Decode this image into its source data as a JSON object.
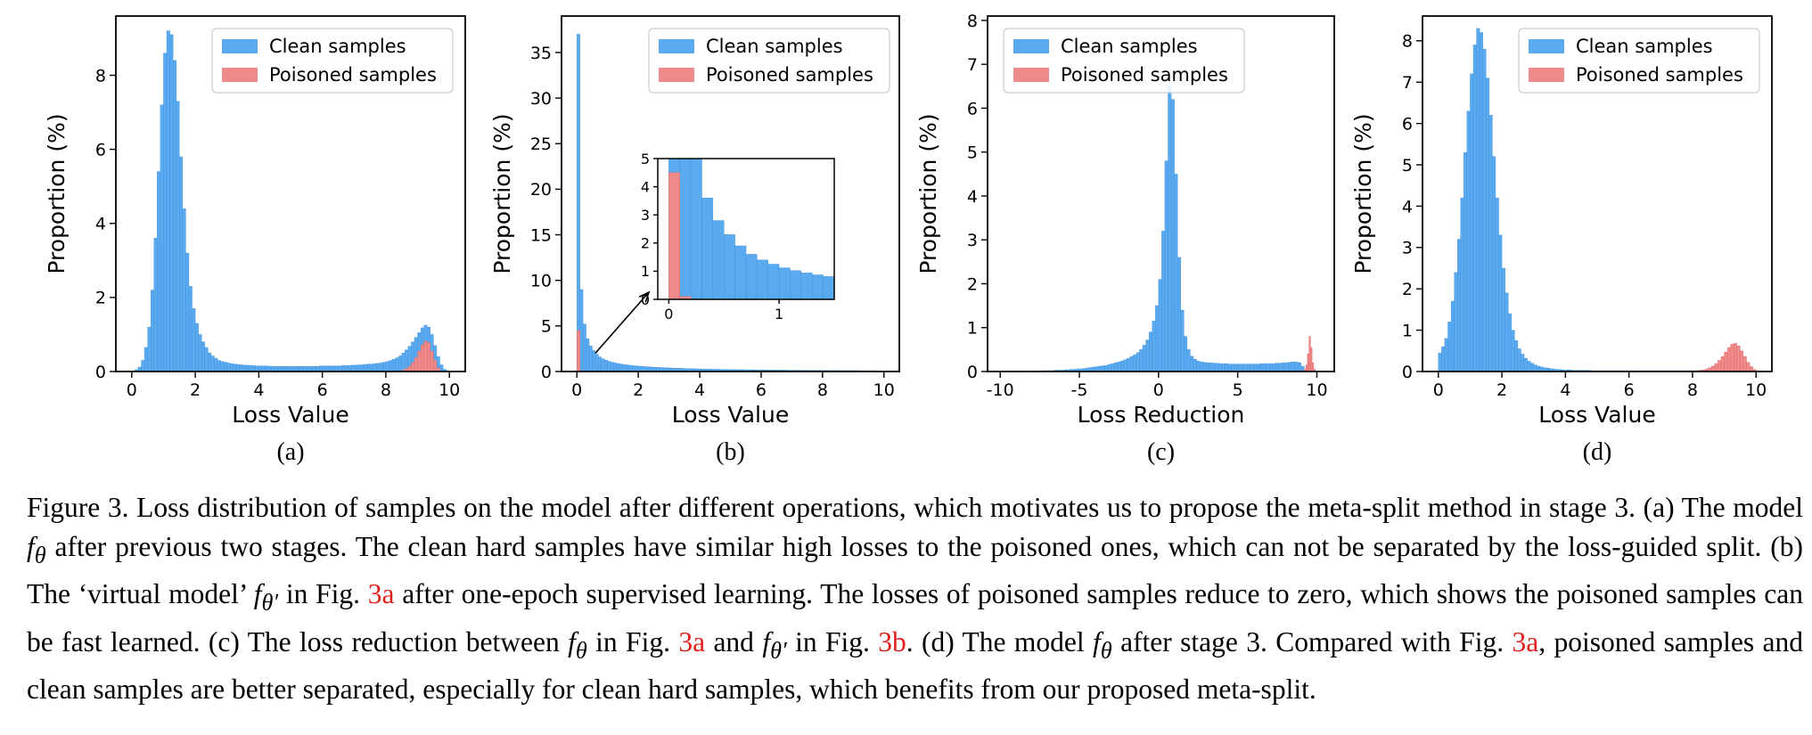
{
  "legend": {
    "clean": "Clean samples",
    "poisoned": "Poisoned samples"
  },
  "colors": {
    "clean": "#5aaaf0",
    "clean_edge": "#3d8fdb",
    "poisoned": "#ef8a8a",
    "poisoned_edge": "#e06666"
  },
  "panels": [
    {
      "id": "a",
      "sublabel": "(a)",
      "xlabel": "Loss Value",
      "ylabel": "Proportion (%)",
      "xlim": [
        -0.5,
        10.5
      ],
      "ylim": [
        0,
        9.6
      ],
      "xticks": [
        0,
        2,
        4,
        6,
        8,
        10
      ],
      "xtick_labels": [
        "0",
        "2",
        "4",
        "6",
        "8",
        "10"
      ],
      "yticks": [
        0,
        2,
        4,
        6,
        8
      ],
      "ytick_labels": [
        "0",
        "2",
        "4",
        "6",
        "8"
      ],
      "clean": {
        "start": 0,
        "width": 0.1,
        "values": [
          0.02,
          0.05,
          0.12,
          0.3,
          0.65,
          1.2,
          2.2,
          3.6,
          5.4,
          7.2,
          8.6,
          9.2,
          9.1,
          8.4,
          7.3,
          5.8,
          4.4,
          3.2,
          2.3,
          1.7,
          1.3,
          1.0,
          0.8,
          0.65,
          0.5,
          0.42,
          0.36,
          0.3,
          0.27,
          0.25,
          0.23,
          0.21,
          0.2,
          0.19,
          0.18,
          0.17,
          0.17,
          0.16,
          0.16,
          0.15,
          0.15,
          0.15,
          0.15,
          0.14,
          0.14,
          0.14,
          0.14,
          0.14,
          0.14,
          0.14,
          0.14,
          0.14,
          0.14,
          0.14,
          0.14,
          0.14,
          0.14,
          0.14,
          0.14,
          0.15,
          0.15,
          0.15,
          0.15,
          0.15,
          0.15,
          0.15,
          0.16,
          0.16,
          0.16,
          0.17,
          0.17,
          0.18,
          0.18,
          0.19,
          0.2,
          0.2,
          0.21,
          0.22,
          0.23,
          0.25,
          0.27,
          0.3,
          0.33,
          0.37,
          0.42,
          0.5,
          0.58,
          0.68,
          0.8,
          0.92,
          1.05,
          1.18,
          1.25,
          1.2,
          1.0,
          0.7,
          0.4,
          0.18,
          0.06,
          0.02
        ]
      },
      "poisoned": {
        "start": 8.4,
        "width": 0.1,
        "values": [
          0.02,
          0.04,
          0.08,
          0.14,
          0.24,
          0.38,
          0.55,
          0.72,
          0.82,
          0.78,
          0.55,
          0.3,
          0.1
        ]
      },
      "inset": null
    },
    {
      "id": "b",
      "sublabel": "(b)",
      "xlabel": "Loss Value",
      "ylabel": "Proportion (%)",
      "xlim": [
        -0.5,
        10.5
      ],
      "ylim": [
        0,
        39
      ],
      "xticks": [
        0,
        2,
        4,
        6,
        8,
        10
      ],
      "xtick_labels": [
        "0",
        "2",
        "4",
        "6",
        "8",
        "10"
      ],
      "yticks": [
        0,
        5,
        10,
        15,
        20,
        25,
        30,
        35
      ],
      "ytick_labels": [
        "0",
        "5",
        "10",
        "15",
        "20",
        "25",
        "30",
        "35"
      ],
      "clean": {
        "start": 0,
        "width": 0.1,
        "values": [
          37.0,
          9.0,
          5.2,
          3.6,
          2.8,
          2.3,
          1.9,
          1.6,
          1.4,
          1.25,
          1.12,
          1.02,
          0.94,
          0.87,
          0.81,
          0.76,
          0.72,
          0.68,
          0.64,
          0.61,
          0.58,
          0.56,
          0.53,
          0.51,
          0.49,
          0.47,
          0.45,
          0.43,
          0.42,
          0.4,
          0.39,
          0.37,
          0.36,
          0.35,
          0.34,
          0.33,
          0.32,
          0.31,
          0.3,
          0.29,
          0.28,
          0.27,
          0.27,
          0.26,
          0.25,
          0.25,
          0.24,
          0.23,
          0.23,
          0.22,
          0.22,
          0.21,
          0.21,
          0.2,
          0.2,
          0.19,
          0.19,
          0.19,
          0.18,
          0.18,
          0.17,
          0.17,
          0.17,
          0.16,
          0.16,
          0.16,
          0.15,
          0.15,
          0.15,
          0.14,
          0.14,
          0.14,
          0.14,
          0.13,
          0.13,
          0.13,
          0.13,
          0.12,
          0.12,
          0.12,
          0.12,
          0.11,
          0.11,
          0.11,
          0.11,
          0.11,
          0.1,
          0.1,
          0.1,
          0.1,
          0.1,
          0.1,
          0.09,
          0.09,
          0.09,
          0.09,
          0.09,
          0.09
        ]
      },
      "poisoned": {
        "start": 0,
        "width": 0.1,
        "values": [
          4.5,
          0.1
        ]
      },
      "inset": {
        "xlim": [
          -0.1,
          1.5
        ],
        "ylim": [
          0,
          5
        ],
        "xticks": [
          0,
          1
        ],
        "xtick_labels": [
          "0",
          "1"
        ],
        "yticks": [
          0,
          1,
          2,
          3,
          4,
          5
        ],
        "ytick_labels": [
          "0",
          "1",
          "2",
          "3",
          "4",
          "5"
        ],
        "clean": {
          "start": 0,
          "width": 0.1,
          "values": [
            37.0,
            9.0,
            5.2,
            3.6,
            2.8,
            2.3,
            1.9,
            1.6,
            1.4,
            1.25,
            1.12,
            1.02,
            0.94,
            0.87,
            0.81
          ]
        },
        "poisoned": {
          "start": 0,
          "width": 0.1,
          "values": [
            4.5,
            0.1
          ]
        }
      }
    },
    {
      "id": "c",
      "sublabel": "(c)",
      "xlabel": "Loss Reduction",
      "ylabel": "Proportion (%)",
      "xlim": [
        -10.8,
        11.1
      ],
      "ylim": [
        0,
        8.1
      ],
      "xticks": [
        -10,
        -5,
        0,
        5,
        10
      ],
      "xtick_labels": [
        "-10",
        "-5",
        "0",
        "5",
        "10"
      ],
      "yticks": [
        0,
        1,
        2,
        3,
        4,
        5,
        6,
        7,
        8
      ],
      "ytick_labels": [
        "0",
        "1",
        "2",
        "3",
        "4",
        "5",
        "6",
        "7",
        "8"
      ],
      "clean": {
        "start": -8,
        "width": 0.2,
        "values": [
          0.01,
          0.01,
          0.01,
          0.02,
          0.02,
          0.02,
          0.02,
          0.03,
          0.03,
          0.03,
          0.04,
          0.04,
          0.05,
          0.05,
          0.06,
          0.06,
          0.07,
          0.08,
          0.09,
          0.1,
          0.11,
          0.12,
          0.13,
          0.14,
          0.16,
          0.18,
          0.2,
          0.22,
          0.24,
          0.27,
          0.3,
          0.34,
          0.38,
          0.43,
          0.5,
          0.6,
          0.72,
          0.9,
          1.15,
          1.5,
          2.1,
          3.2,
          4.8,
          6.5,
          6.2,
          4.5,
          2.6,
          1.4,
          0.8,
          0.5,
          0.35,
          0.28,
          0.24,
          0.22,
          0.21,
          0.2,
          0.2,
          0.19,
          0.19,
          0.18,
          0.18,
          0.18,
          0.17,
          0.17,
          0.17,
          0.17,
          0.17,
          0.17,
          0.17,
          0.17,
          0.17,
          0.17,
          0.18,
          0.18,
          0.18,
          0.18,
          0.18,
          0.19,
          0.19,
          0.2,
          0.2,
          0.21,
          0.22,
          0.22,
          0.2,
          0.12,
          0.04
        ]
      },
      "poisoned": {
        "start": 9.2,
        "width": 0.1,
        "values": [
          0.05,
          0.15,
          0.4,
          0.8,
          0.55,
          0.2,
          0.05
        ]
      },
      "inset": null
    },
    {
      "id": "d",
      "sublabel": "(d)",
      "xlabel": "Loss Value",
      "ylabel": "Proportion (%)",
      "xlim": [
        -0.5,
        10.5
      ],
      "ylim": [
        0,
        8.6
      ],
      "xticks": [
        0,
        2,
        4,
        6,
        8,
        10
      ],
      "xtick_labels": [
        "0",
        "2",
        "4",
        "6",
        "8",
        "10"
      ],
      "yticks": [
        0,
        1,
        2,
        3,
        4,
        5,
        6,
        7,
        8
      ],
      "ytick_labels": [
        "0",
        "1",
        "2",
        "3",
        "4",
        "5",
        "6",
        "7",
        "8"
      ],
      "clean": {
        "start": 0,
        "width": 0.1,
        "values": [
          0.45,
          0.6,
          0.8,
          1.2,
          1.7,
          2.4,
          3.2,
          4.2,
          5.3,
          6.3,
          7.2,
          7.9,
          8.3,
          8.2,
          7.8,
          7.1,
          6.2,
          5.2,
          4.2,
          3.3,
          2.5,
          1.9,
          1.4,
          1.0,
          0.75,
          0.55,
          0.42,
          0.32,
          0.25,
          0.2,
          0.16,
          0.13,
          0.11,
          0.09,
          0.08,
          0.07,
          0.06,
          0.05,
          0.05,
          0.04,
          0.04,
          0.04,
          0.03,
          0.03,
          0.03,
          0.03,
          0.03,
          0.03,
          0.02,
          0.02,
          0.02,
          0.02,
          0.02,
          0.02,
          0.02,
          0.02,
          0.02,
          0.02,
          0.02,
          0.02,
          0.02,
          0.02,
          0.02,
          0.02,
          0.02,
          0.02,
          0.02,
          0.02,
          0.02,
          0.02,
          0.02,
          0.02,
          0.02,
          0.02,
          0.02,
          0.02,
          0.02,
          0.02,
          0.02,
          0.02,
          0.02,
          0.02,
          0.02
        ]
      },
      "poisoned": {
        "start": 8.0,
        "width": 0.1,
        "values": [
          0.01,
          0.02,
          0.03,
          0.04,
          0.06,
          0.09,
          0.13,
          0.19,
          0.27,
          0.36,
          0.47,
          0.58,
          0.66,
          0.68,
          0.62,
          0.5,
          0.36,
          0.22,
          0.12,
          0.05,
          0.02
        ]
      },
      "inset": null
    }
  ],
  "caption": {
    "s1": "Figure 3.  Loss distribution of samples on the model after different operations, which motivates us to propose the meta-split method in stage 3. (a) The model ",
    "m1": "f",
    "m1sub": "θ",
    "s2": " after previous two stages. The clean hard samples have similar high losses to the poisoned ones, which can not be separated by the loss-guided split. (b) The ‘virtual model’ ",
    "m2": "f",
    "m2sub": "θ′",
    "s3": " in Fig. ",
    "r1": "3a",
    "s4": " after one-epoch supervised learning. The losses of poisoned samples reduce to zero, which shows the poisoned samples can be fast learned. (c) The loss reduction between ",
    "m3": "f",
    "m3sub": "θ",
    "s5": " in Fig. ",
    "r2": "3a",
    "s6": " and ",
    "m4": "f",
    "m4sub": "θ′",
    "s7": " in Fig. ",
    "r3": "3b",
    "s8": ". (d) The model ",
    "m5": "f",
    "m5sub": "θ",
    "s9": " after stage 3. Compared with Fig. ",
    "r4": "3a",
    "s10": ", poisoned samples and clean samples are better separated, especially for clean hard samples, which benefits from our proposed meta-split."
  }
}
